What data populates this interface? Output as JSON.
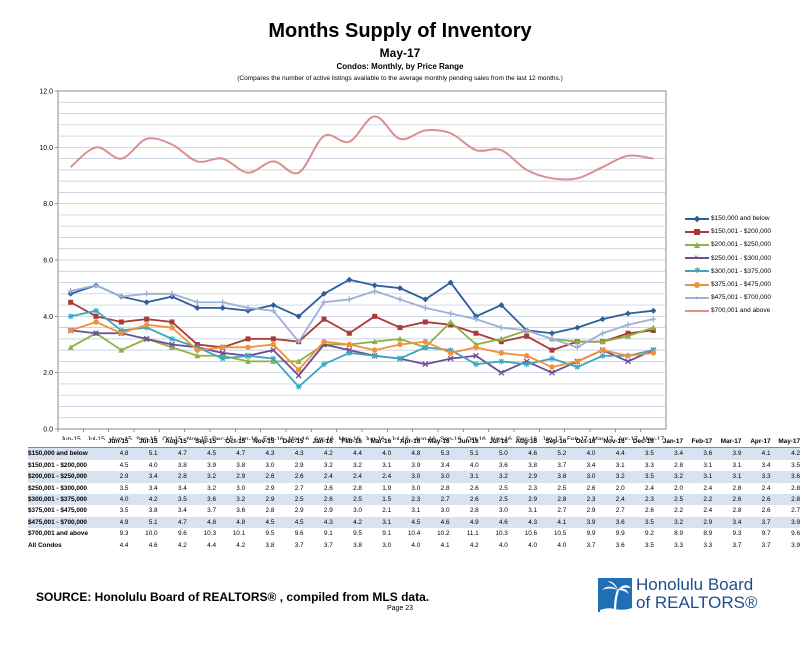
{
  "header": {
    "title": "Months Supply of Inventory",
    "subtitle": "May-17",
    "subtitle2": "Condos: Monthly, by Price Range",
    "note": "(Compares the number of active listings available to the average monthly pending sales from the last 12 months.)"
  },
  "chart_data": {
    "type": "line",
    "title": "Months Supply of Inventory",
    "ylim": [
      0,
      12
    ],
    "yticks": [
      "0.0",
      "2.0",
      "4.0",
      "6.0",
      "8.0",
      "10.0",
      "12.0"
    ],
    "grid": true,
    "legend_position": "right",
    "categories": [
      "Jun-15",
      "Jul-15",
      "Aug-15",
      "Sep-15",
      "Oct-15",
      "Nov-15",
      "Dec-15",
      "Jan-16",
      "Feb-16",
      "Mar-16",
      "Apr-16",
      "May-16",
      "Jun-16",
      "Jul-16",
      "Aug-16",
      "Sep-16",
      "Oct-16",
      "Nov-16",
      "Dec-16",
      "Jan-17",
      "Feb-17",
      "Mar-17",
      "Apr-17",
      "May-17"
    ],
    "series": [
      {
        "name": "$150,000 and below",
        "color": "#2e5f9b",
        "marker": "diamond",
        "values": [
          4.8,
          5.1,
          4.7,
          4.5,
          4.7,
          4.3,
          4.3,
          4.2,
          4.4,
          4.0,
          4.8,
          5.3,
          5.1,
          5.0,
          4.6,
          5.2,
          4.0,
          4.4,
          3.5,
          3.4,
          3.6,
          3.9,
          4.1,
          4.2
        ]
      },
      {
        "name": "$150,001 - $200,000",
        "color": "#a93a37",
        "marker": "square",
        "values": [
          4.5,
          4.0,
          3.8,
          3.9,
          3.8,
          3.0,
          2.9,
          3.2,
          3.2,
          3.1,
          3.9,
          3.4,
          4.0,
          3.6,
          3.8,
          3.7,
          3.4,
          3.1,
          3.3,
          2.8,
          3.1,
          3.1,
          3.4,
          3.5
        ]
      },
      {
        "name": "$200,001 - $250,000",
        "color": "#8fb042",
        "marker": "triangle",
        "values": [
          2.9,
          3.4,
          2.8,
          3.2,
          2.9,
          2.6,
          2.6,
          2.4,
          2.4,
          2.4,
          3.0,
          3.0,
          3.1,
          3.2,
          2.9,
          3.8,
          3.0,
          3.2,
          3.5,
          3.2,
          3.1,
          3.1,
          3.3,
          3.6
        ]
      },
      {
        "name": "$250,001 - $300,000",
        "color": "#6d4c96",
        "marker": "x",
        "values": [
          3.5,
          3.4,
          3.4,
          3.2,
          3.0,
          2.9,
          2.7,
          2.6,
          2.8,
          1.9,
          3.0,
          2.8,
          2.6,
          2.5,
          2.3,
          2.5,
          2.6,
          2.0,
          2.4,
          2.0,
          2.4,
          2.8,
          2.4,
          2.8
        ]
      },
      {
        "name": "$300,001 - $375,000",
        "color": "#3aa7bf",
        "marker": "star",
        "values": [
          4.0,
          4.2,
          3.5,
          3.6,
          3.2,
          2.9,
          2.5,
          2.6,
          2.5,
          1.5,
          2.3,
          2.7,
          2.6,
          2.5,
          2.9,
          2.8,
          2.3,
          2.4,
          2.3,
          2.5,
          2.2,
          2.6,
          2.6,
          2.8
        ]
      },
      {
        "name": "$375,001 - $475,000",
        "color": "#f1923a",
        "marker": "circle",
        "values": [
          3.5,
          3.8,
          3.4,
          3.7,
          3.6,
          2.8,
          2.9,
          2.9,
          3.0,
          2.1,
          3.1,
          3.0,
          2.8,
          3.0,
          3.1,
          2.7,
          2.9,
          2.7,
          2.6,
          2.2,
          2.4,
          2.8,
          2.6,
          2.7
        ]
      },
      {
        "name": "$475,001 - $700,000",
        "color": "#9db0d8",
        "marker": "plus",
        "values": [
          4.9,
          5.1,
          4.7,
          4.8,
          4.8,
          4.5,
          4.5,
          4.3,
          4.2,
          3.1,
          4.5,
          4.6,
          4.9,
          4.6,
          4.3,
          4.1,
          3.9,
          3.6,
          3.5,
          3.2,
          2.9,
          3.4,
          3.7,
          3.9
        ]
      },
      {
        "name": "$700,001 and above",
        "color": "#d9908e",
        "marker": "none",
        "values": [
          9.3,
          10.0,
          9.6,
          10.3,
          10.1,
          9.5,
          9.6,
          9.1,
          9.5,
          9.1,
          10.4,
          10.2,
          11.1,
          10.3,
          10.6,
          10.5,
          9.9,
          9.9,
          9.2,
          8.9,
          8.9,
          9.3,
          9.7,
          9.6
        ]
      }
    ]
  },
  "table": {
    "columns": [
      "Jun-15",
      "Jul-15",
      "Aug-15",
      "Sep-15",
      "Oct-15",
      "Nov-15",
      "Dec-15",
      "Jan-16",
      "Feb-16",
      "Mar-16",
      "Apr-16",
      "May-16",
      "Jun-16",
      "Jul-16",
      "Aug-16",
      "Sep-16",
      "Oct-16",
      "Nov-16",
      "Dec-16",
      "Jan-17",
      "Feb-17",
      "Mar-17",
      "Apr-17",
      "May-17"
    ],
    "rows": [
      {
        "label": "$150,000 and below",
        "values": [
          "4.8",
          "5.1",
          "4.7",
          "4.5",
          "4.7",
          "4.3",
          "4.3",
          "4.2",
          "4.4",
          "4.0",
          "4.8",
          "5.3",
          "5.1",
          "5.0",
          "4.6",
          "5.2",
          "4.0",
          "4.4",
          "3.5",
          "3.4",
          "3.6",
          "3.9",
          "4.1",
          "4.2"
        ]
      },
      {
        "label": "$150,001 - $200,000",
        "values": [
          "4.5",
          "4.0",
          "3.8",
          "3.9",
          "3.8",
          "3.0",
          "2.9",
          "3.2",
          "3.2",
          "3.1",
          "3.9",
          "3.4",
          "4.0",
          "3.6",
          "3.8",
          "3.7",
          "3.4",
          "3.1",
          "3.3",
          "2.8",
          "3.1",
          "3.1",
          "3.4",
          "3.5"
        ]
      },
      {
        "label": "$200,001 - $250,000",
        "values": [
          "2.9",
          "3.4",
          "2.8",
          "3.2",
          "2.9",
          "2.6",
          "2.6",
          "2.4",
          "2.4",
          "2.4",
          "3.0",
          "3.0",
          "3.1",
          "3.2",
          "2.9",
          "3.8",
          "3.0",
          "3.2",
          "3.5",
          "3.2",
          "3.1",
          "3.1",
          "3.3",
          "3.6"
        ]
      },
      {
        "label": "$250,001 - $300,000",
        "values": [
          "3.5",
          "3.4",
          "3.4",
          "3.2",
          "3.0",
          "2.9",
          "2.7",
          "2.6",
          "2.8",
          "1.9",
          "3.0",
          "2.8",
          "2.6",
          "2.5",
          "2.3",
          "2.5",
          "2.6",
          "2.0",
          "2.4",
          "2.0",
          "2.4",
          "2.8",
          "2.4",
          "2.8"
        ]
      },
      {
        "label": "$300,001 - $375,000",
        "values": [
          "4.0",
          "4.2",
          "3.5",
          "3.6",
          "3.2",
          "2.9",
          "2.5",
          "2.6",
          "2.5",
          "1.5",
          "2.3",
          "2.7",
          "2.6",
          "2.5",
          "2.9",
          "2.8",
          "2.3",
          "2.4",
          "2.3",
          "2.5",
          "2.2",
          "2.6",
          "2.6",
          "2.8"
        ]
      },
      {
        "label": "$375,001 - $475,000",
        "values": [
          "3.5",
          "3.8",
          "3.4",
          "3.7",
          "3.6",
          "2.8",
          "2.9",
          "2.9",
          "3.0",
          "2.1",
          "3.1",
          "3.0",
          "2.8",
          "3.0",
          "3.1",
          "2.7",
          "2.9",
          "2.7",
          "2.6",
          "2.2",
          "2.4",
          "2.8",
          "2.6",
          "2.7"
        ]
      },
      {
        "label": "$475,001 - $700,000",
        "values": [
          "4.9",
          "5.1",
          "4.7",
          "4.8",
          "4.8",
          "4.5",
          "4.5",
          "4.3",
          "4.2",
          "3.1",
          "4.5",
          "4.6",
          "4.9",
          "4.6",
          "4.3",
          "4.1",
          "3.9",
          "3.6",
          "3.5",
          "3.2",
          "2.9",
          "3.4",
          "3.7",
          "3.9"
        ]
      },
      {
        "label": "$700,001 and above",
        "values": [
          "9.3",
          "10.0",
          "9.6",
          "10.3",
          "10.1",
          "9.5",
          "9.6",
          "9.1",
          "9.5",
          "9.1",
          "10.4",
          "10.2",
          "11.1",
          "10.3",
          "10.6",
          "10.5",
          "9.9",
          "9.9",
          "9.2",
          "8.9",
          "8.9",
          "9.3",
          "9.7",
          "9.6"
        ]
      },
      {
        "label": "All Condos",
        "values": [
          "4.4",
          "4.6",
          "4.2",
          "4.4",
          "4.2",
          "3.8",
          "3.7",
          "3.7",
          "3.8",
          "3.0",
          "4.0",
          "4.1",
          "4.2",
          "4.0",
          "4.0",
          "4.0",
          "3.7",
          "3.6",
          "3.5",
          "3.3",
          "3.3",
          "3.7",
          "3.7",
          "3.9"
        ]
      }
    ]
  },
  "footer": {
    "source": "SOURCE:  Honolulu Board of REALTORS® , compiled from MLS data.",
    "page": "Page 23",
    "logo_line1": "Honolulu Board",
    "logo_line2": "of REALTORS®"
  }
}
